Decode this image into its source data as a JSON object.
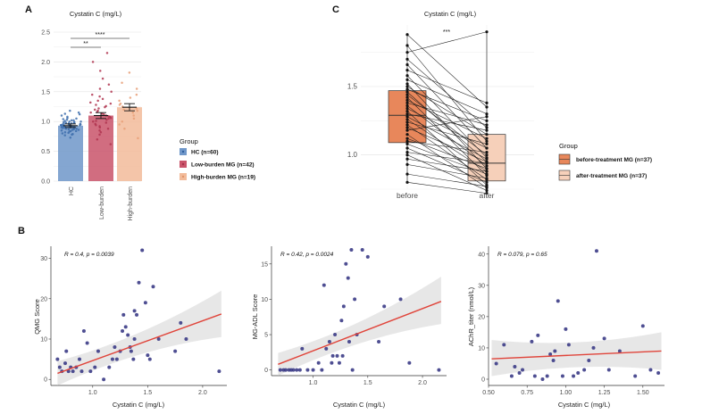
{
  "chart_data": [
    {
      "panel": "A",
      "type": "bar",
      "title": "Cystatin C (mg/L)",
      "categories": [
        "HC",
        "Low-burden",
        "High-burden"
      ],
      "values": [
        0.93,
        1.1,
        1.24
      ],
      "errors": [
        0.03,
        0.05,
        0.06
      ],
      "colors": [
        "#6f97c9",
        "#c9546a",
        "#f2bb9a"
      ],
      "ylim": [
        0,
        2.5
      ],
      "yticks": [
        "0.0",
        "0.5",
        "1.0",
        "1.5",
        "2.0",
        "2.5"
      ],
      "significance": [
        {
          "from": "HC",
          "to": "Low-burden",
          "label": "**"
        },
        {
          "from": "HC",
          "to": "High-burden",
          "label": "****"
        }
      ],
      "legend": {
        "title": "Group",
        "items": [
          "HC (n=60)",
          "Low-burden MG (n=42)",
          "High-burden MG (n=19)"
        ]
      },
      "points": [
        [
          0.73,
          0.78,
          0.8,
          0.82,
          0.83,
          0.84,
          0.85,
          0.86,
          0.86,
          0.87,
          0.88,
          0.88,
          0.89,
          0.9,
          0.9,
          0.91,
          0.91,
          0.92,
          0.92,
          0.93,
          0.93,
          0.94,
          0.94,
          0.95,
          0.95,
          0.95,
          0.96,
          0.96,
          0.97,
          0.97,
          0.98,
          0.98,
          0.99,
          1.0,
          1.0,
          1.01,
          1.02,
          1.03,
          1.04,
          1.05,
          1.06,
          1.08,
          1.1,
          1.12,
          1.13,
          1.15,
          1.18,
          0.77,
          0.79,
          0.81,
          0.84,
          0.87,
          0.89,
          0.9,
          0.92,
          0.93,
          0.94,
          0.96,
          0.99,
          1.02
        ],
        [
          0.62,
          0.7,
          0.78,
          0.82,
          0.85,
          0.88,
          0.9,
          0.92,
          0.94,
          0.96,
          0.98,
          1.0,
          1.01,
          1.03,
          1.05,
          1.06,
          1.08,
          1.09,
          1.1,
          1.12,
          1.13,
          1.15,
          1.16,
          1.18,
          1.2,
          1.22,
          1.24,
          1.26,
          1.28,
          1.3,
          1.32,
          1.35,
          1.38,
          1.42,
          1.45,
          1.5,
          1.55,
          1.62,
          1.72,
          1.85,
          2.0,
          2.15
        ],
        [
          0.72,
          0.88,
          0.95,
          1.0,
          1.05,
          1.1,
          1.15,
          1.18,
          1.2,
          1.22,
          1.25,
          1.28,
          1.3,
          1.35,
          1.4,
          1.45,
          1.55,
          1.65,
          1.82
        ]
      ]
    },
    {
      "panel": "C",
      "type": "box",
      "title": "Cystatin C (mg/L)",
      "categories": [
        "before",
        "after"
      ],
      "ylim": [
        0.75,
        1.95
      ],
      "yticks": [
        "1.0",
        "1.5"
      ],
      "significance": "***",
      "boxes": [
        {
          "q1": 1.09,
          "median": 1.29,
          "q3": 1.47,
          "min": 0.8,
          "max": 1.88,
          "color": "#e8875b"
        },
        {
          "q1": 0.81,
          "median": 0.94,
          "q3": 1.15,
          "min": 0.72,
          "max": 1.9,
          "color": "#f6d0ba"
        }
      ],
      "pairs": [
        [
          1.88,
          1.35
        ],
        [
          1.8,
          1.1
        ],
        [
          1.75,
          1.9
        ],
        [
          1.7,
          1.2
        ],
        [
          1.66,
          1.05
        ],
        [
          1.62,
          1.38
        ],
        [
          1.58,
          0.98
        ],
        [
          1.55,
          1.3
        ],
        [
          1.52,
          0.9
        ],
        [
          1.5,
          1.15
        ],
        [
          1.48,
          1.25
        ],
        [
          1.46,
          0.95
        ],
        [
          1.44,
          1.0
        ],
        [
          1.42,
          0.85
        ],
        [
          1.4,
          1.12
        ],
        [
          1.38,
          1.22
        ],
        [
          1.36,
          0.92
        ],
        [
          1.34,
          1.05
        ],
        [
          1.32,
          0.78
        ],
        [
          1.3,
          1.18
        ],
        [
          1.28,
          0.97
        ],
        [
          1.26,
          0.88
        ],
        [
          1.24,
          1.08
        ],
        [
          1.22,
          0.82
        ],
        [
          1.2,
          0.95
        ],
        [
          1.18,
          1.28
        ],
        [
          1.15,
          0.76
        ],
        [
          1.12,
          0.9
        ],
        [
          1.1,
          1.02
        ],
        [
          1.08,
          0.86
        ],
        [
          1.05,
          0.8
        ],
        [
          1.02,
          0.94
        ],
        [
          1.0,
          0.74
        ],
        [
          0.97,
          0.88
        ],
        [
          0.93,
          0.83
        ],
        [
          0.86,
          0.77
        ],
        [
          0.8,
          0.72
        ]
      ],
      "legend": {
        "title": "Group",
        "items": [
          "before-treatment MG (n=37)",
          "after-treatment MG (n=37)"
        ]
      }
    },
    {
      "panel": "B",
      "type": "scatter",
      "stat": "R = 0.4, p = 0.0039",
      "xlabel": "Cystatin C (mg/L)",
      "ylabel": "QMG Score",
      "xlim": [
        0.62,
        2.22
      ],
      "ylim": [
        -1.5,
        33
      ],
      "xticks": [
        1.0,
        1.5,
        2.0
      ],
      "yticks": [
        0,
        10,
        20,
        30
      ],
      "fit": {
        "x": [
          0.68,
          2.17
        ],
        "y": [
          1.5,
          16.2
        ],
        "band_low": [
          -1.5,
          10.5
        ],
        "band_high": [
          4.5,
          22.0
        ]
      },
      "points": [
        [
          0.68,
          5
        ],
        [
          0.7,
          3
        ],
        [
          0.72,
          2
        ],
        [
          0.75,
          4
        ],
        [
          0.76,
          7
        ],
        [
          0.78,
          2
        ],
        [
          0.8,
          3
        ],
        [
          0.82,
          2
        ],
        [
          0.85,
          3
        ],
        [
          0.88,
          5
        ],
        [
          0.9,
          2
        ],
        [
          0.92,
          12
        ],
        [
          0.95,
          9
        ],
        [
          0.98,
          2
        ],
        [
          1.02,
          3
        ],
        [
          1.05,
          7
        ],
        [
          1.1,
          0
        ],
        [
          1.15,
          3
        ],
        [
          1.18,
          5
        ],
        [
          1.2,
          8
        ],
        [
          1.22,
          5
        ],
        [
          1.25,
          7
        ],
        [
          1.27,
          12
        ],
        [
          1.28,
          16
        ],
        [
          1.3,
          13
        ],
        [
          1.32,
          11
        ],
        [
          1.34,
          8
        ],
        [
          1.35,
          7
        ],
        [
          1.37,
          5
        ],
        [
          1.38,
          10
        ],
        [
          1.38,
          17
        ],
        [
          1.4,
          16
        ],
        [
          1.42,
          24
        ],
        [
          1.45,
          32
        ],
        [
          1.48,
          19
        ],
        [
          1.5,
          6
        ],
        [
          1.52,
          5
        ],
        [
          1.55,
          23
        ],
        [
          1.6,
          10
        ],
        [
          1.75,
          7
        ],
        [
          1.8,
          14
        ],
        [
          1.85,
          10
        ],
        [
          2.15,
          2
        ]
      ]
    },
    {
      "panel": "B",
      "type": "scatter",
      "stat": "R = 0.42, p = 0.0024",
      "xlabel": "Cystatin C (mg/L)",
      "ylabel": "MG-ADL Score",
      "xlim": [
        0.62,
        2.22
      ],
      "ylim": [
        -0.8,
        17.5
      ],
      "xticks": [
        1.0,
        1.5,
        2.0
      ],
      "yticks": [
        0,
        5,
        10,
        15
      ],
      "fit": {
        "x": [
          0.68,
          2.17
        ],
        "y": [
          0.8,
          9.7
        ],
        "band_low": [
          -0.8,
          6.5
        ],
        "band_high": [
          2.4,
          13.2
        ]
      },
      "points": [
        [
          0.7,
          0
        ],
        [
          0.73,
          0
        ],
        [
          0.75,
          0
        ],
        [
          0.78,
          0
        ],
        [
          0.8,
          0
        ],
        [
          0.82,
          0
        ],
        [
          0.85,
          0
        ],
        [
          0.88,
          0
        ],
        [
          0.9,
          3
        ],
        [
          0.95,
          0
        ],
        [
          1.0,
          0
        ],
        [
          1.05,
          1
        ],
        [
          1.08,
          0
        ],
        [
          1.1,
          12
        ],
        [
          1.12,
          3
        ],
        [
          1.15,
          4
        ],
        [
          1.17,
          1
        ],
        [
          1.18,
          2
        ],
        [
          1.2,
          5
        ],
        [
          1.22,
          2
        ],
        [
          1.24,
          1
        ],
        [
          1.26,
          7
        ],
        [
          1.27,
          2
        ],
        [
          1.28,
          9
        ],
        [
          1.3,
          15
        ],
        [
          1.32,
          13
        ],
        [
          1.33,
          4
        ],
        [
          1.35,
          17
        ],
        [
          1.36,
          0
        ],
        [
          1.38,
          10
        ],
        [
          1.4,
          5
        ],
        [
          1.45,
          17
        ],
        [
          1.5,
          16
        ],
        [
          1.6,
          4
        ],
        [
          1.65,
          9
        ],
        [
          1.8,
          10
        ],
        [
          1.88,
          1
        ],
        [
          2.15,
          0
        ]
      ]
    },
    {
      "panel": "B",
      "type": "scatter",
      "stat": "R = 0.079, p = 0.65",
      "xlabel": "Cystatin C (mg/L)",
      "ylabel": "AChR_titer (nmol/L)",
      "xlim": [
        0.5,
        1.64
      ],
      "ylim": [
        -2,
        42.5
      ],
      "xticks": [
        0.5,
        0.75,
        1.0,
        1.25,
        1.5
      ],
      "yticks": [
        0,
        10,
        20,
        30,
        40
      ],
      "fit": {
        "x": [
          0.52,
          1.62
        ],
        "y": [
          6.5,
          9.0
        ],
        "band_low": [
          1.0,
          3.0
        ],
        "band_high": [
          12.5,
          15.0
        ]
      },
      "points": [
        [
          0.55,
          5
        ],
        [
          0.6,
          11
        ],
        [
          0.65,
          1
        ],
        [
          0.67,
          4
        ],
        [
          0.7,
          2
        ],
        [
          0.72,
          3
        ],
        [
          0.78,
          12
        ],
        [
          0.8,
          1
        ],
        [
          0.82,
          14
        ],
        [
          0.85,
          0
        ],
        [
          0.88,
          1
        ],
        [
          0.9,
          8
        ],
        [
          0.92,
          6
        ],
        [
          0.93,
          9
        ],
        [
          0.95,
          25
        ],
        [
          0.98,
          1
        ],
        [
          1.0,
          16
        ],
        [
          1.02,
          11
        ],
        [
          1.05,
          1
        ],
        [
          1.08,
          2
        ],
        [
          1.12,
          3
        ],
        [
          1.15,
          6
        ],
        [
          1.18,
          10
        ],
        [
          1.2,
          41
        ],
        [
          1.25,
          13
        ],
        [
          1.28,
          3
        ],
        [
          1.35,
          9
        ],
        [
          1.45,
          1
        ],
        [
          1.5,
          17
        ],
        [
          1.55,
          3
        ],
        [
          1.6,
          2
        ]
      ]
    }
  ]
}
